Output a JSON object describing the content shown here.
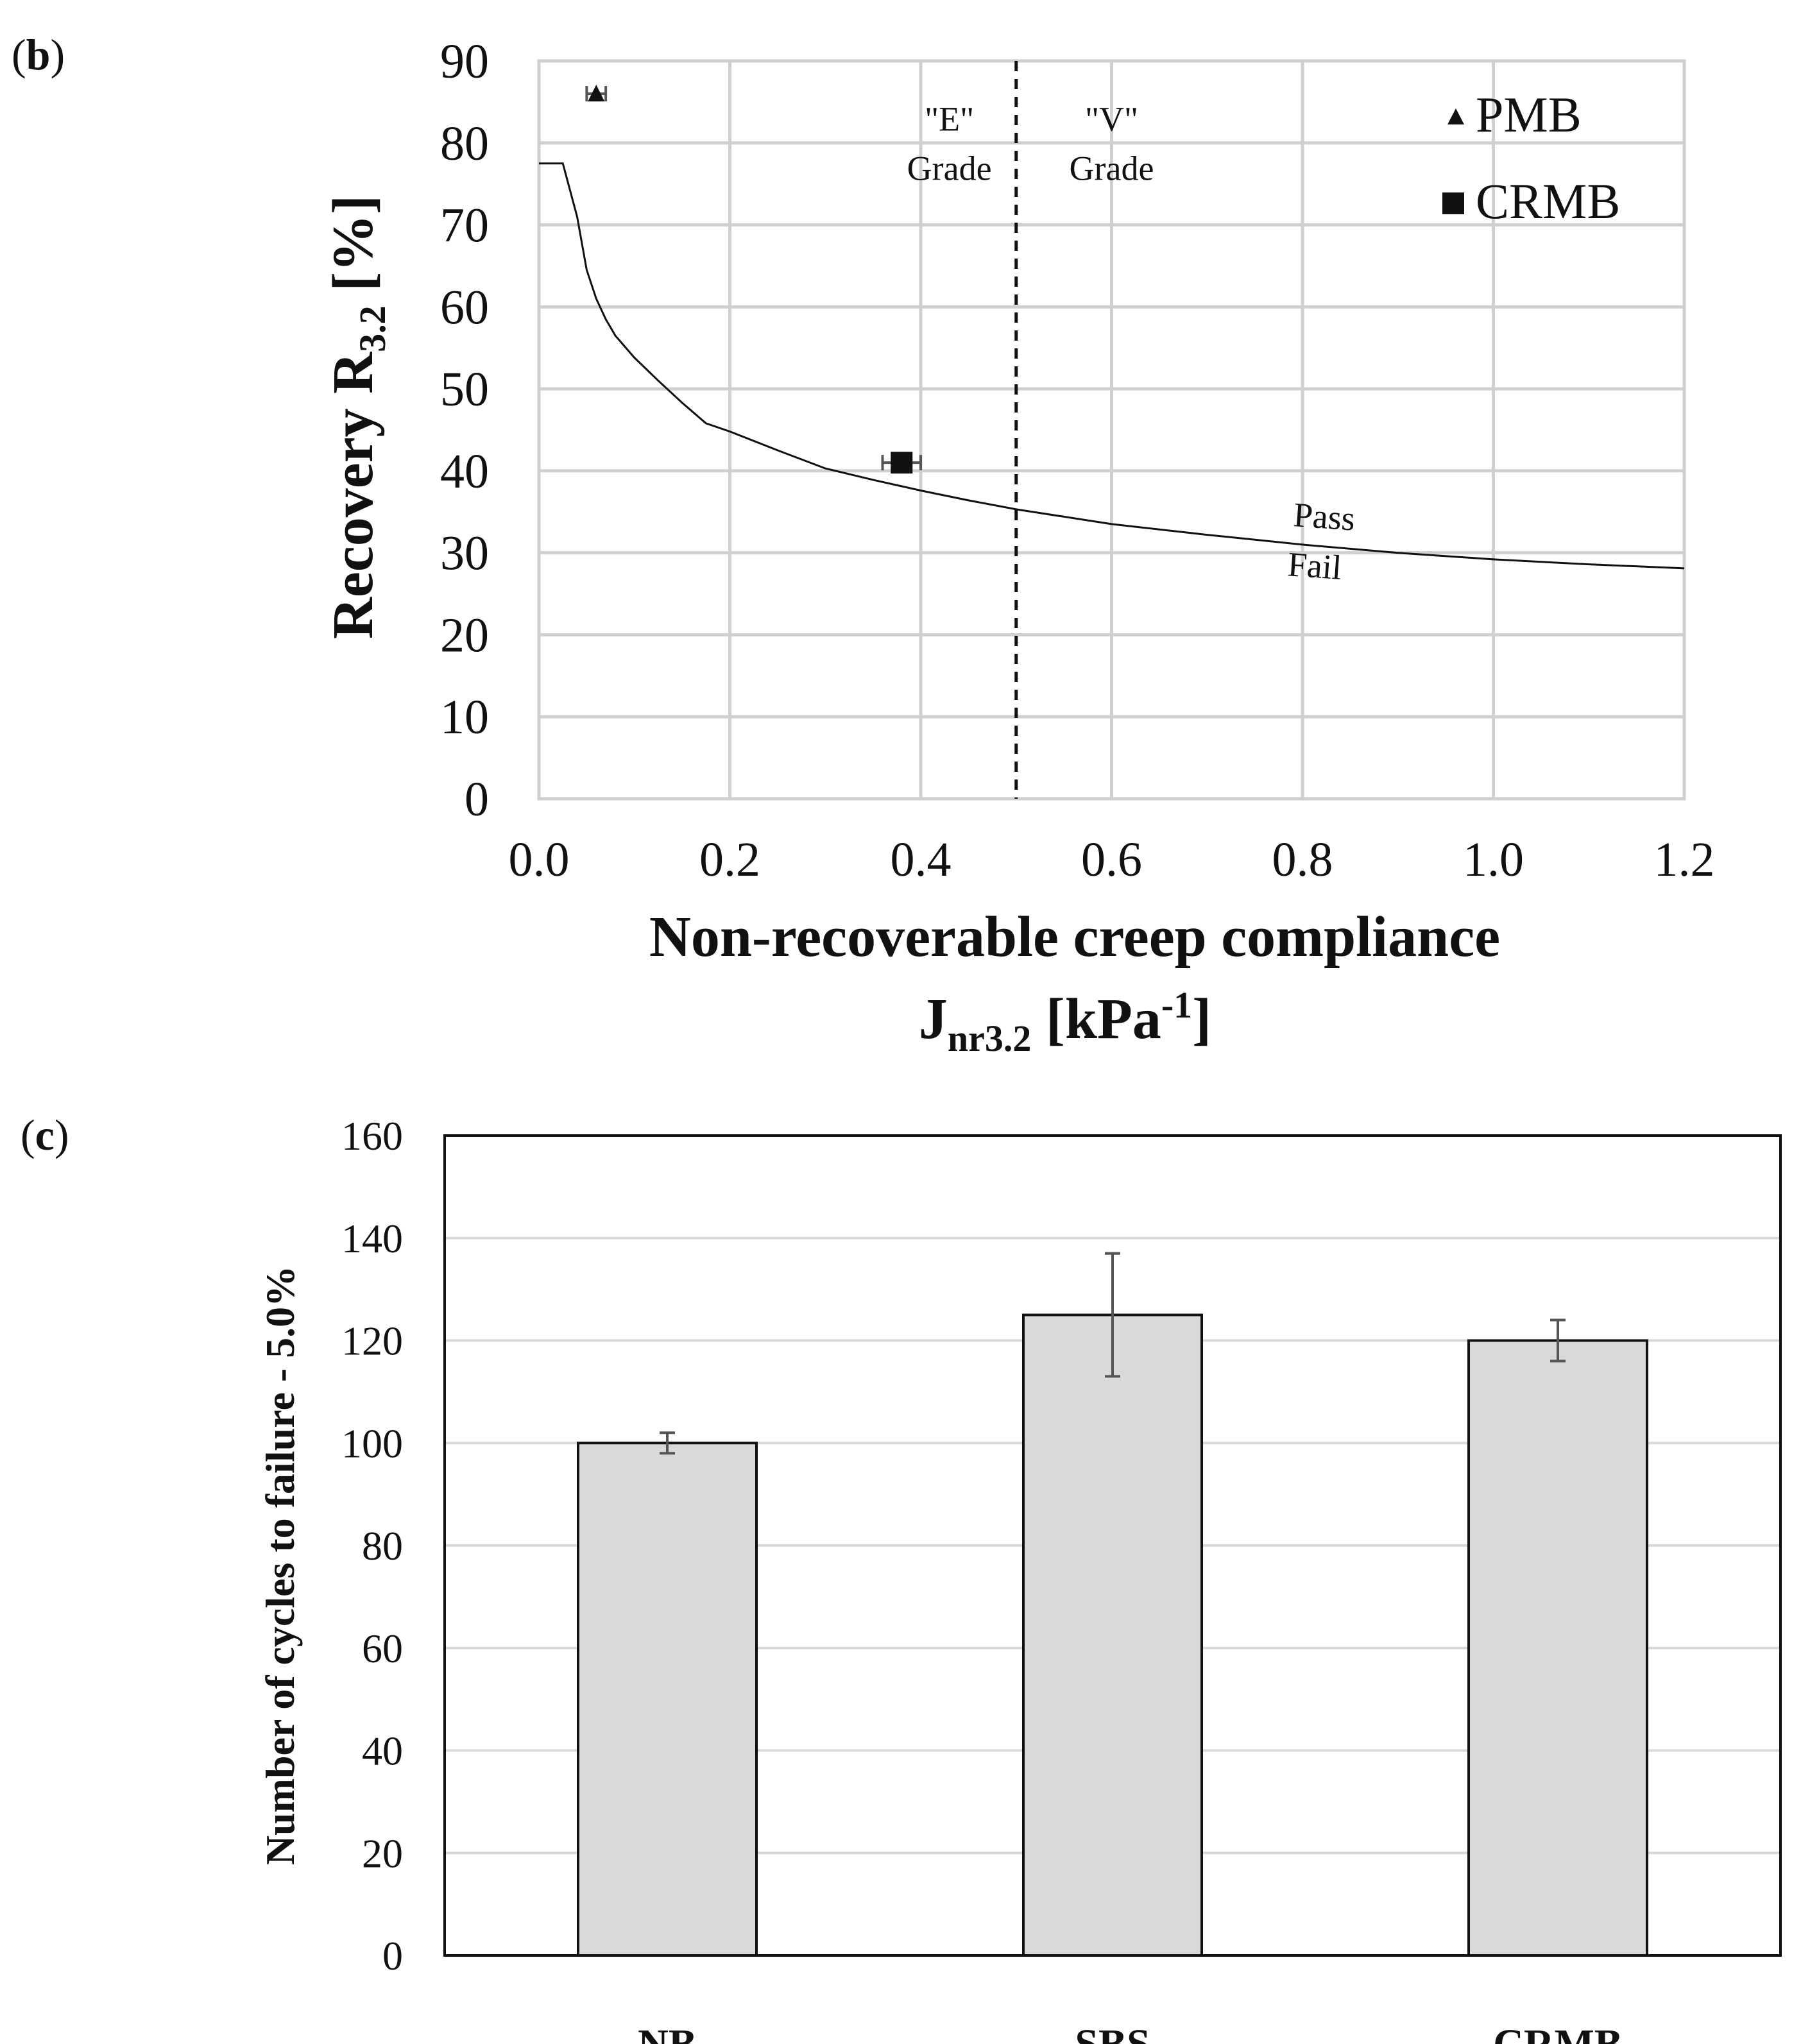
{
  "chart_data": [
    {
      "type": "scatter",
      "panel_label": "b",
      "title": "",
      "xlabel": "Non-recoverable creep compliance",
      "xlabel_sub": {
        "base": "J",
        "sub": "nr3.2",
        "mid": " [kPa",
        "sup": "-1",
        "end": "]"
      },
      "ylabel": {
        "base": "Recovery R",
        "sub": "3.2",
        "end": " [%]"
      },
      "xlim": [
        0,
        1.2
      ],
      "ylim": [
        0,
        90
      ],
      "xticks": [
        "0.0",
        "0.2",
        "0.4",
        "0.6",
        "0.8",
        "1.0",
        "1.2"
      ],
      "yticks": [
        "0",
        "10",
        "20",
        "30",
        "40",
        "50",
        "60",
        "70",
        "80",
        "90"
      ],
      "grid": true,
      "series": [
        {
          "name": "PMB",
          "marker": "triangle",
          "points": [
            {
              "x": 0.06,
              "y": 86.0,
              "xerr": 0.01
            }
          ]
        },
        {
          "name": "CRMB",
          "marker": "square",
          "points": [
            {
              "x": 0.38,
              "y": 41.0,
              "xerr": 0.02
            }
          ]
        }
      ],
      "threshold_curve": {
        "name": "Pass/Fail",
        "x": [
          0.0,
          0.025,
          0.04,
          0.05,
          0.06,
          0.07,
          0.08,
          0.1,
          0.125,
          0.15,
          0.175,
          0.2,
          0.25,
          0.3,
          0.35,
          0.4,
          0.45,
          0.5,
          0.6,
          0.7,
          0.8,
          0.9,
          1.0,
          1.1,
          1.2
        ],
        "y": [
          77.5,
          77.5,
          71.0,
          64.5,
          61.0,
          58.5,
          56.5,
          53.8,
          51.0,
          48.3,
          45.8,
          44.8,
          42.5,
          40.3,
          38.9,
          37.6,
          36.4,
          35.3,
          33.5,
          32.2,
          31.0,
          30.0,
          29.2,
          28.6,
          28.1
        ]
      },
      "grade_boundary_x": 0.5,
      "annotations": {
        "e_grade_line1": "\"E\"",
        "e_grade_line2": "Grade",
        "v_grade_line1": "\"V\"",
        "v_grade_line2": "Grade",
        "pass": "Pass",
        "fail": "Fail"
      },
      "legend_position": "top-right"
    },
    {
      "type": "bar",
      "panel_label": "c",
      "title": "",
      "xlabel": "",
      "ylabel": "Number of cycles to failure - 5.0%",
      "ylim": [
        0,
        160
      ],
      "yticks": [
        "0",
        "20",
        "40",
        "60",
        "80",
        "100",
        "120",
        "140",
        "160"
      ],
      "categories": [
        "NB",
        "SBS",
        "CRMB"
      ],
      "values": [
        100,
        125,
        120
      ],
      "errors": [
        2,
        12,
        4
      ],
      "bar_color": "#d9d9d9",
      "grid": true
    }
  ]
}
